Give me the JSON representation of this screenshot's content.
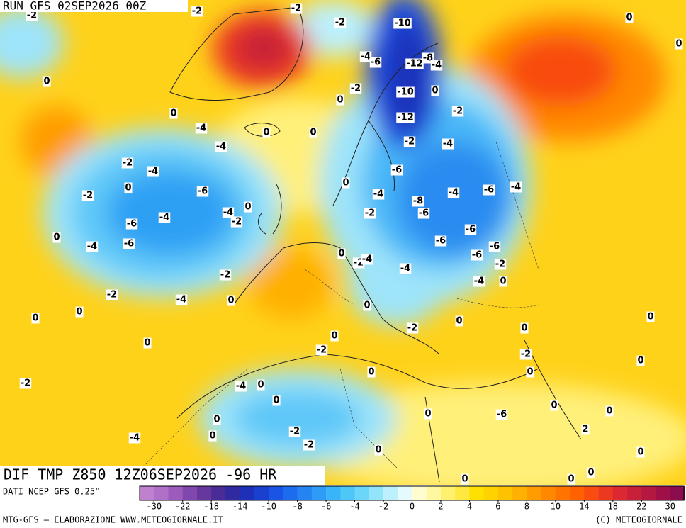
{
  "header": {
    "run": "RUN GFS 02SEP2026 00Z"
  },
  "map": {
    "title": "DIF TMP Z850 12Z06SEP2026 -96 HR",
    "contour_labels": [
      "-2",
      "-2",
      "-2",
      "-2",
      "-10",
      "0",
      "-4",
      "-6",
      "-12",
      "-8",
      "-4",
      "0",
      "-2",
      "-10",
      "0",
      "0",
      "-2",
      "0",
      "-12",
      "0",
      "0",
      "-4",
      "-4",
      "-2",
      "-4",
      "-2",
      "-4",
      "-6",
      "0",
      "-2",
      "0",
      "-6",
      "-4",
      "-4",
      "-6",
      "-4",
      "-8",
      "0",
      "-4",
      "-4",
      "-2",
      "-6",
      "-2",
      "-6",
      "-6",
      "0",
      "-4",
      "-6",
      "-6",
      "-6",
      "-6",
      "0",
      "-2",
      "-4",
      "-4",
      "-2",
      "-2",
      "-4",
      "0",
      "-2",
      "-4",
      "0",
      "0",
      "0",
      "0",
      "0",
      "-2",
      "0",
      "0",
      "0",
      "-2",
      "0",
      "-2",
      "0",
      "0",
      "0",
      "-2",
      "0",
      "-4",
      "0",
      "0",
      "0",
      "0",
      "0",
      "-6",
      "-2",
      "0",
      "2",
      "-4",
      "-2",
      "0",
      "0",
      "0",
      "0",
      "0",
      "0"
    ]
  },
  "legend": {
    "source": "DATI NCEP GFS 0.25°",
    "colors": [
      "#c080d0",
      "#b070c8",
      "#9c5cbc",
      "#8048ac",
      "#66389e",
      "#4a2c98",
      "#302aa0",
      "#1e30b8",
      "#1a40d0",
      "#1a54e4",
      "#1e6cee",
      "#2684f2",
      "#2e9cf6",
      "#3ab4f8",
      "#4ec6f8",
      "#6cd6fa",
      "#92e4fa",
      "#bcf0fc",
      "#e4fafc",
      "#fffcd0",
      "#fff8a0",
      "#fff070",
      "#ffe840",
      "#ffe000",
      "#ffd200",
      "#ffc200",
      "#ffb000",
      "#ff9c00",
      "#ff8800",
      "#ff7400",
      "#ff6000",
      "#f84c10",
      "#ec3820",
      "#dc2830",
      "#c82038",
      "#b41840",
      "#a01048",
      "#8c0c50"
    ],
    "ticks": [
      -30,
      -22,
      -18,
      -14,
      -10,
      -8,
      -6,
      -4,
      -2,
      0,
      2,
      4,
      6,
      8,
      10,
      14,
      18,
      22,
      30
    ]
  },
  "footer": {
    "left": "MTG-GFS — ELABORAZIONE WWW.METEOGIORNALE.IT",
    "right": "(C) METEOGIORNALE"
  }
}
